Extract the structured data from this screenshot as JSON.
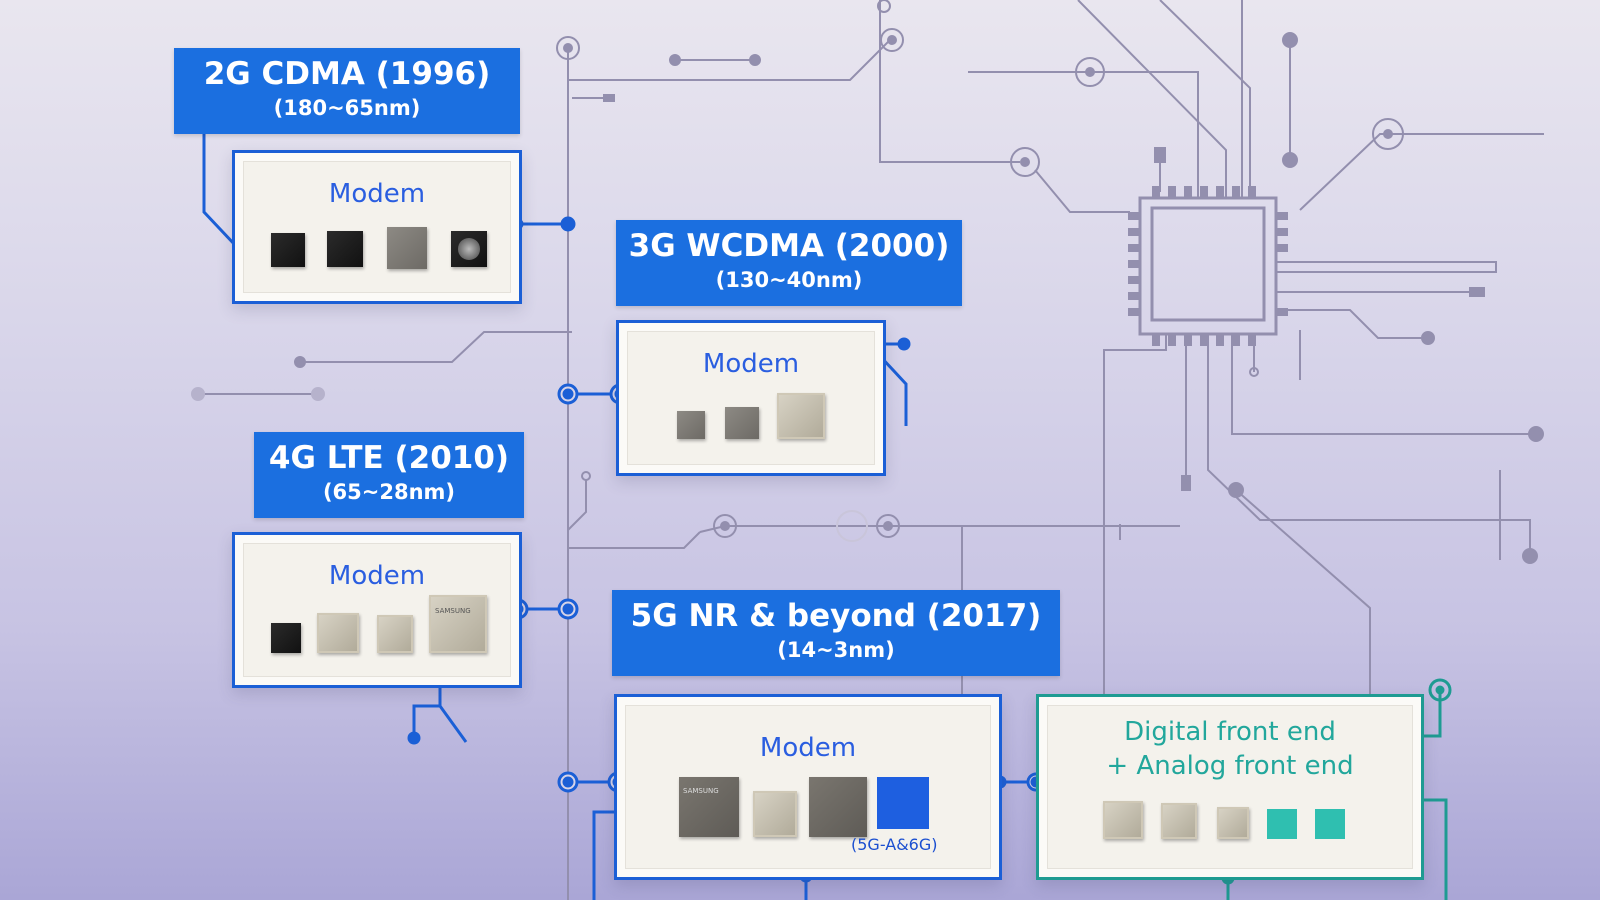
{
  "generations": [
    {
      "title": "2G CDMA (1996)",
      "node": "(180~65nm)",
      "box_label": "Modem"
    },
    {
      "title": "3G WCDMA (2000)",
      "node": "(130~40nm)",
      "box_label": "Modem"
    },
    {
      "title": "4G LTE (2010)",
      "node": "(65~28nm)",
      "box_label": "Modem"
    },
    {
      "title": "5G NR & beyond (2017)",
      "node": "(14~3nm)",
      "box_label": "Modem",
      "chip_caption": "(5G-A&6G)"
    }
  ],
  "frontend": {
    "line1": "Digital front end",
    "line2": "+ Analog front end"
  },
  "chip_markings": {
    "samsung": "SAMSUNG"
  },
  "colors": {
    "brand_blue": "#1b6fe0",
    "teal": "#1e9b92",
    "circuit_line": "#9c98b8"
  }
}
